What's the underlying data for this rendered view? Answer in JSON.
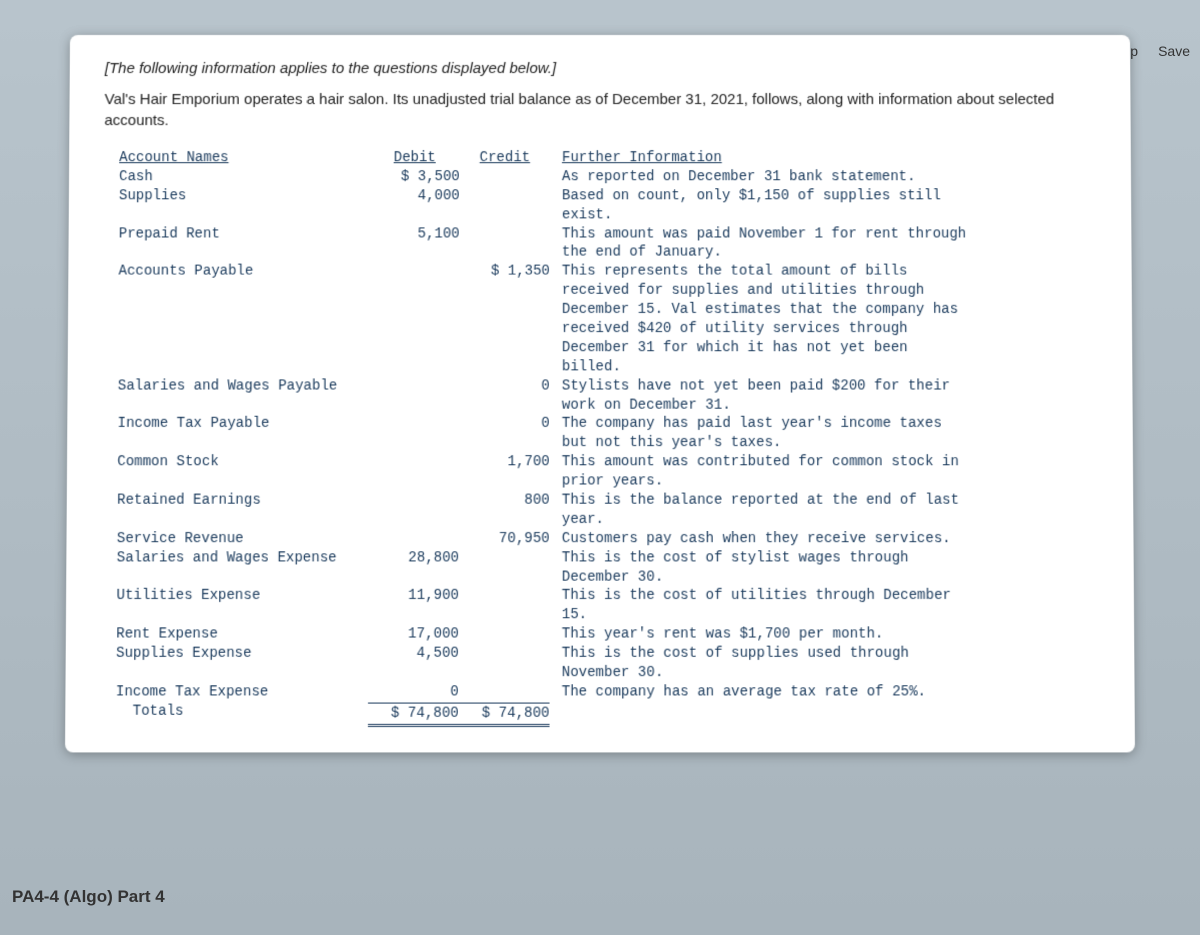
{
  "toolbar": {
    "help": "Help",
    "save": "Save"
  },
  "intro": "[The following information applies to the questions displayed below.]",
  "description": "Val's Hair Emporium operates a hair salon. Its unadjusted trial balance as of December 31, 2021, follows, along with information about selected accounts.",
  "table": {
    "headers": {
      "name": "Account Names",
      "debit": "Debit",
      "credit": "Credit",
      "info": "Further Information"
    },
    "rows": [
      {
        "name": "Cash",
        "debit": "$ 3,500",
        "credit": "",
        "info": "As reported on December 31 bank statement."
      },
      {
        "name": "Supplies",
        "debit": "4,000",
        "credit": "",
        "info": "Based on count, only $1,150 of supplies still exist."
      },
      {
        "name": "Prepaid Rent",
        "debit": "5,100",
        "credit": "",
        "info": "This amount was paid November 1 for rent through the end of January."
      },
      {
        "name": "Accounts Payable",
        "debit": "",
        "credit": "$ 1,350",
        "info": "This represents the total amount of bills received for supplies and utilities through December 15. Val estimates that the company has received $420 of utility services through December 31 for which it has not yet been billed."
      },
      {
        "name": "Salaries and Wages Payable",
        "debit": "",
        "credit": "0",
        "info": "Stylists have not yet been paid $200 for their work on December 31."
      },
      {
        "name": "Income Tax Payable",
        "debit": "",
        "credit": "0",
        "info": "The company has paid last year's income taxes but not this year's taxes."
      },
      {
        "name": "Common Stock",
        "debit": "",
        "credit": "1,700",
        "info": "This amount was contributed for common stock in prior years."
      },
      {
        "name": "Retained Earnings",
        "debit": "",
        "credit": "800",
        "info": "This is the balance reported at the end of last year."
      },
      {
        "name": "Service Revenue",
        "debit": "",
        "credit": "70,950",
        "info": "Customers pay cash when they receive services."
      },
      {
        "name": "Salaries and Wages Expense",
        "debit": "28,800",
        "credit": "",
        "info": "This is the cost of stylist wages through December 30."
      },
      {
        "name": "Utilities Expense",
        "debit": "11,900",
        "credit": "",
        "info": "This is the cost of utilities through December 15."
      },
      {
        "name": "Rent Expense",
        "debit": "17,000",
        "credit": "",
        "info": "This year's rent was $1,700 per month."
      },
      {
        "name": "Supplies Expense",
        "debit": "4,500",
        "credit": "",
        "info": "This is the cost of supplies used through November 30."
      },
      {
        "name": "Income Tax Expense",
        "debit": "0",
        "credit": "",
        "info": "The company has an average tax rate of 25%."
      }
    ],
    "totals": {
      "name": "  Totals",
      "debit": "$ 74,800",
      "credit": "$ 74,800"
    }
  },
  "subtitle": "PA4-4 (Algo) Part 4",
  "colors": {
    "text_primary": "#222",
    "text_mono": "#1a3a5c",
    "bg_page": "#ffffff",
    "bg_body_top": "#b8c4cc",
    "bg_body_bottom": "#a8b4bc"
  },
  "typography": {
    "body_font": "Arial",
    "mono_font": "Courier New",
    "body_size_pt": 11,
    "mono_size_pt": 10.5
  }
}
